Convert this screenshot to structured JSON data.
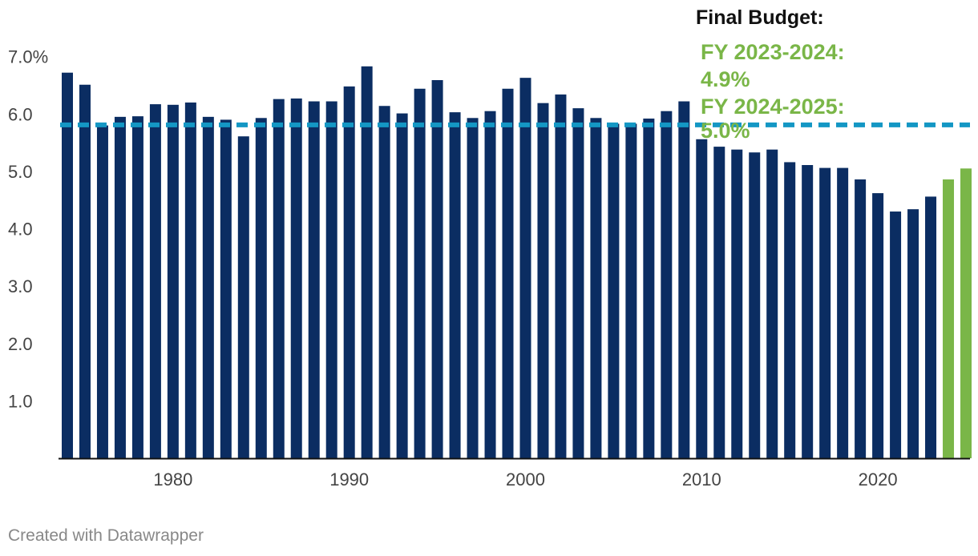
{
  "chart_data": {
    "type": "bar",
    "x": [
      1974,
      1975,
      1976,
      1977,
      1978,
      1979,
      1980,
      1981,
      1982,
      1983,
      1984,
      1985,
      1986,
      1987,
      1988,
      1989,
      1990,
      1991,
      1992,
      1993,
      1994,
      1995,
      1996,
      1997,
      1998,
      1999,
      2000,
      2001,
      2002,
      2003,
      2004,
      2005,
      2006,
      2007,
      2008,
      2009,
      2010,
      2011,
      2012,
      2013,
      2014,
      2015,
      2016,
      2017,
      2018,
      2019,
      2020,
      2021,
      2022,
      2023,
      2024,
      2025
    ],
    "values": [
      6.72,
      6.51,
      5.8,
      5.95,
      5.96,
      6.17,
      6.16,
      6.2,
      5.95,
      5.9,
      5.61,
      5.93,
      6.26,
      6.27,
      6.22,
      6.22,
      6.48,
      6.83,
      6.14,
      6.01,
      6.44,
      6.59,
      6.03,
      5.93,
      6.05,
      6.44,
      6.63,
      6.19,
      6.34,
      6.1,
      5.93,
      5.83,
      5.83,
      5.92,
      6.05,
      6.22,
      5.56,
      5.43,
      5.38,
      5.33,
      5.38,
      5.16,
      5.11,
      5.06,
      5.06,
      4.86,
      4.62,
      4.3,
      4.34,
      4.56,
      4.86,
      5.05
    ],
    "highlighted_x": [
      2024,
      2025
    ],
    "colors": {
      "bar": "#0b2d62",
      "highlight": "#7ab648",
      "reference": "#1497c4",
      "axis": "#111111"
    },
    "ylim": [
      0,
      7.4
    ],
    "y_ticks": [
      1,
      2,
      3,
      4,
      5,
      6,
      7
    ],
    "y_tick_labels": [
      "1.0",
      "2.0",
      "3.0",
      "4.0",
      "5.0",
      "6.0",
      "7.0%"
    ],
    "x_ticks": [
      1980,
      1990,
      2000,
      2010,
      2020
    ],
    "x_tick_labels": [
      "1980",
      "1990",
      "2000",
      "2010",
      "2020"
    ],
    "reference_line": {
      "value": 5.81,
      "style": "dashed"
    },
    "annotation": {
      "title": "Final Budget:",
      "lines": [
        "FY 2023-2024:",
        "4.9%",
        "FY 2024-2025:",
        "5.0%"
      ]
    },
    "grid": false
  },
  "credit": "Created with Datawrapper"
}
